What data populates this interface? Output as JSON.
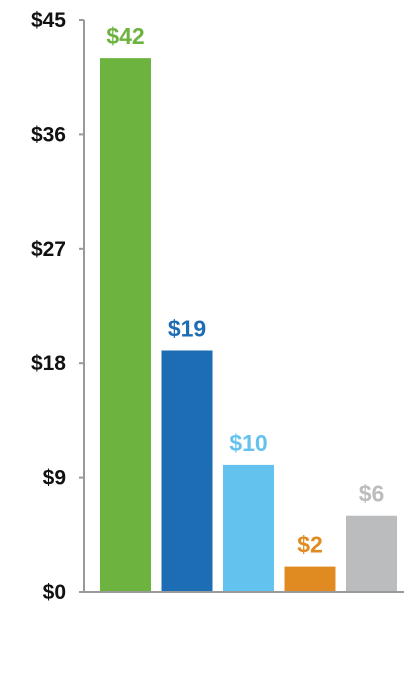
{
  "chart_data": {
    "type": "bar",
    "title": "",
    "xlabel": "",
    "ylabel": "",
    "ylim": [
      0,
      45
    ],
    "yticks": [
      0,
      9,
      18,
      27,
      36,
      45
    ],
    "ytick_labels": [
      "$0",
      "$9",
      "$18",
      "$27",
      "$36",
      "$45"
    ],
    "grid": false,
    "categories": [
      "",
      "",
      "",
      "",
      ""
    ],
    "values": [
      42,
      19,
      10,
      2,
      6
    ],
    "data_labels": [
      "$42",
      "$19",
      "$10",
      "$2",
      "$6"
    ],
    "colors": [
      "#6cb33f",
      "#1d6db5",
      "#64c3ee",
      "#e08b22",
      "#bbbcbe"
    ]
  }
}
